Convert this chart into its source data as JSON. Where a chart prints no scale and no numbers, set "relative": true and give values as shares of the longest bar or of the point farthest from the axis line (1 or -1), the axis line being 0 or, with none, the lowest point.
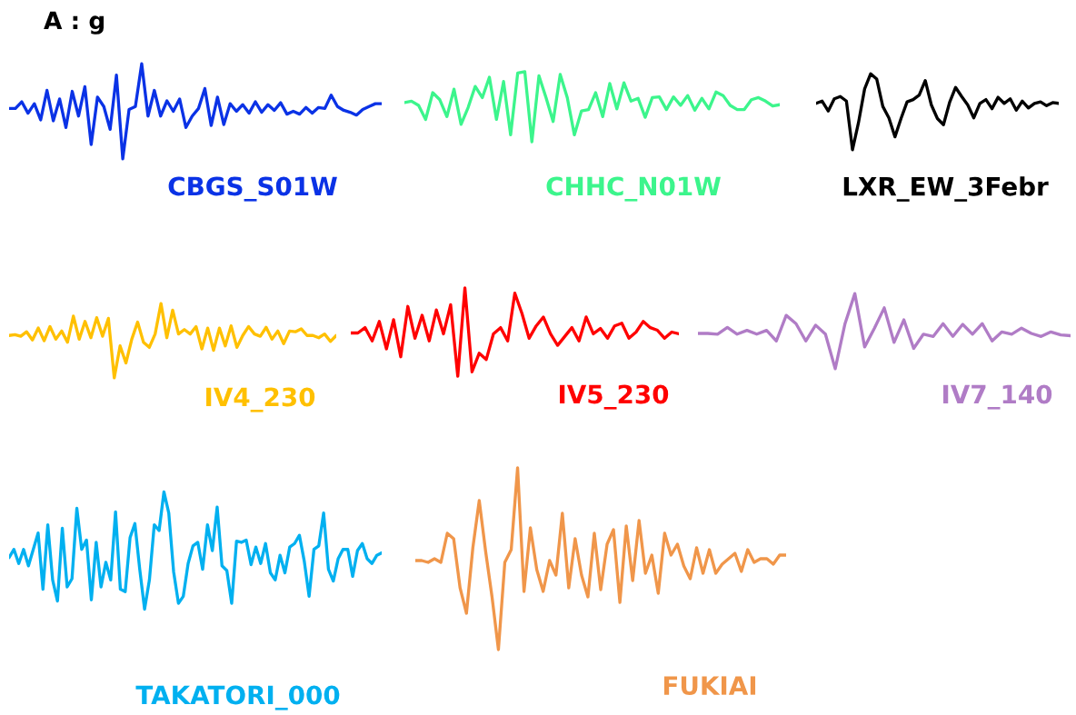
{
  "chart_data": [
    {
      "type": "line",
      "title": "A : g",
      "relative": true,
      "categories": [
        null,
        null,
        null,
        null,
        null,
        null,
        null,
        null,
        null,
        null,
        null,
        null,
        null,
        null,
        null,
        null,
        null,
        null,
        null,
        null,
        null,
        null,
        null,
        null,
        null,
        null,
        null,
        null,
        null,
        null,
        null,
        null,
        null,
        null,
        null,
        null,
        null,
        null,
        null,
        null,
        null,
        null,
        null,
        null,
        null,
        null,
        null,
        null,
        null,
        null,
        null,
        null,
        null,
        null,
        null,
        null,
        null,
        null,
        null,
        null
      ],
      "series": [
        {
          "name": "CBGS_S01W",
          "color": "#0a32e6",
          "values": [
            0.53,
            0.53,
            0.6,
            0.48,
            0.58,
            0.41,
            0.72,
            0.4,
            0.63,
            0.33,
            0.71,
            0.45,
            0.76,
            0.15,
            0.65,
            0.55,
            0.31,
            0.88,
            0.0,
            0.52,
            0.55,
            1.0,
            0.45,
            0.72,
            0.45,
            0.61,
            0.5,
            0.63,
            0.33,
            0.45,
            0.53,
            0.74,
            0.35,
            0.65,
            0.36,
            0.58,
            0.5,
            0.57,
            0.48,
            0.6,
            0.49,
            0.57,
            0.51,
            0.59,
            0.47,
            0.5,
            0.47,
            0.54,
            0.48,
            0.54,
            0.53,
            0.67,
            0.55,
            0.51,
            0.49,
            0.46,
            0.52,
            0.55,
            0.58,
            0.58
          ]
        }
      ]
    },
    {
      "type": "line",
      "relative": true,
      "categories": [
        null,
        null,
        null,
        null,
        null,
        null,
        null,
        null,
        null,
        null,
        null,
        null,
        null,
        null,
        null,
        null,
        null,
        null,
        null,
        null,
        null,
        null,
        null,
        null,
        null,
        null,
        null,
        null,
        null,
        null,
        null,
        null,
        null,
        null,
        null,
        null,
        null,
        null,
        null,
        null,
        null,
        null,
        null,
        null,
        null,
        null,
        null,
        null,
        null,
        null,
        null,
        null,
        null,
        null
      ],
      "series": [
        {
          "name": "CHHC_N01W",
          "color": "#3cf58c",
          "values": [
            0.56,
            0.58,
            0.52,
            0.32,
            0.7,
            0.6,
            0.36,
            0.75,
            0.25,
            0.49,
            0.79,
            0.63,
            0.92,
            0.32,
            0.86,
            0.1,
            0.98,
            1.0,
            0.0,
            0.94,
            0.63,
            0.29,
            0.96,
            0.63,
            0.1,
            0.44,
            0.46,
            0.7,
            0.36,
            0.83,
            0.47,
            0.84,
            0.58,
            0.62,
            0.35,
            0.63,
            0.64,
            0.46,
            0.64,
            0.52,
            0.66,
            0.45,
            0.62,
            0.47,
            0.71,
            0.66,
            0.52,
            0.46,
            0.46,
            0.6,
            0.63,
            0.58,
            0.51,
            0.53
          ]
        }
      ]
    },
    {
      "type": "line",
      "relative": true,
      "categories": [
        null,
        null,
        null,
        null,
        null,
        null,
        null,
        null,
        null,
        null,
        null,
        null,
        null,
        null,
        null,
        null,
        null,
        null,
        null,
        null,
        null,
        null,
        null,
        null,
        null,
        null,
        null,
        null,
        null,
        null,
        null,
        null,
        null,
        null,
        null,
        null,
        null,
        null,
        null,
        null,
        null
      ],
      "series": [
        {
          "name": "LXR_EW_3Febr",
          "color": "#000000",
          "values": [
            0.61,
            0.64,
            0.51,
            0.67,
            0.7,
            0.64,
            0.0,
            0.36,
            0.8,
            1.0,
            0.93,
            0.57,
            0.42,
            0.17,
            0.41,
            0.63,
            0.66,
            0.72,
            0.91,
            0.59,
            0.41,
            0.33,
            0.62,
            0.82,
            0.7,
            0.59,
            0.42,
            0.61,
            0.66,
            0.54,
            0.69,
            0.61,
            0.67,
            0.52,
            0.64,
            0.55,
            0.61,
            0.63,
            0.58,
            0.62,
            0.61
          ]
        }
      ]
    },
    {
      "type": "line",
      "relative": true,
      "categories": [
        null,
        null,
        null,
        null,
        null,
        null,
        null,
        null,
        null,
        null,
        null,
        null,
        null,
        null,
        null,
        null,
        null,
        null,
        null,
        null,
        null,
        null,
        null,
        null,
        null,
        null,
        null,
        null,
        null,
        null,
        null,
        null,
        null,
        null,
        null,
        null,
        null,
        null,
        null,
        null,
        null,
        null,
        null,
        null,
        null,
        null,
        null,
        null,
        null,
        null,
        null,
        null,
        null,
        null,
        null,
        null,
        null
      ],
      "series": [
        {
          "name": "IV4_230",
          "color": "#ffc000",
          "values": [
            0.57,
            0.58,
            0.56,
            0.62,
            0.51,
            0.67,
            0.5,
            0.69,
            0.52,
            0.63,
            0.48,
            0.83,
            0.52,
            0.76,
            0.54,
            0.81,
            0.56,
            0.8,
            0.0,
            0.43,
            0.2,
            0.52,
            0.75,
            0.48,
            0.41,
            0.59,
            1.0,
            0.54,
            0.91,
            0.59,
            0.65,
            0.59,
            0.69,
            0.39,
            0.67,
            0.37,
            0.67,
            0.43,
            0.7,
            0.41,
            0.57,
            0.69,
            0.59,
            0.56,
            0.68,
            0.52,
            0.63,
            0.46,
            0.63,
            0.62,
            0.66,
            0.57,
            0.57,
            0.54,
            0.59,
            0.49,
            0.57
          ]
        }
      ]
    },
    {
      "type": "line",
      "relative": true,
      "categories": [
        null,
        null,
        null,
        null,
        null,
        null,
        null,
        null,
        null,
        null,
        null,
        null,
        null,
        null,
        null,
        null,
        null,
        null,
        null,
        null,
        null,
        null,
        null,
        null,
        null,
        null,
        null,
        null,
        null,
        null,
        null,
        null,
        null,
        null,
        null,
        null,
        null,
        null,
        null,
        null,
        null,
        null,
        null,
        null,
        null,
        null,
        null
      ],
      "series": [
        {
          "name": "IV5_230",
          "color": "#ff0000",
          "values": [
            0.49,
            0.49,
            0.55,
            0.4,
            0.62,
            0.31,
            0.64,
            0.22,
            0.79,
            0.43,
            0.69,
            0.4,
            0.75,
            0.48,
            0.81,
            0.0,
            1.0,
            0.05,
            0.26,
            0.19,
            0.48,
            0.55,
            0.4,
            0.94,
            0.71,
            0.43,
            0.57,
            0.67,
            0.48,
            0.35,
            0.45,
            0.55,
            0.4,
            0.67,
            0.48,
            0.54,
            0.43,
            0.57,
            0.6,
            0.43,
            0.5,
            0.62,
            0.55,
            0.52,
            0.43,
            0.5,
            0.48
          ]
        }
      ]
    },
    {
      "type": "line",
      "relative": true,
      "categories": [
        null,
        null,
        null,
        null,
        null,
        null,
        null,
        null,
        null,
        null,
        null,
        null,
        null,
        null,
        null,
        null,
        null,
        null,
        null,
        null,
        null,
        null,
        null,
        null,
        null,
        null,
        null,
        null,
        null,
        null,
        null,
        null,
        null,
        null,
        null,
        null,
        null,
        null,
        null
      ],
      "series": [
        {
          "name": "IV7_140",
          "color": "#b07cc6",
          "values": [
            0.47,
            0.47,
            0.46,
            0.55,
            0.46,
            0.51,
            0.46,
            0.51,
            0.37,
            0.71,
            0.6,
            0.37,
            0.58,
            0.46,
            0.0,
            0.6,
            1.0,
            0.29,
            0.54,
            0.81,
            0.35,
            0.65,
            0.27,
            0.46,
            0.43,
            0.6,
            0.43,
            0.59,
            0.46,
            0.6,
            0.37,
            0.49,
            0.46,
            0.54,
            0.47,
            0.43,
            0.49,
            0.45,
            0.44
          ]
        }
      ]
    },
    {
      "type": "line",
      "relative": true,
      "categories": [
        null,
        null,
        null,
        null,
        null,
        null,
        null,
        null,
        null,
        null,
        null,
        null,
        null,
        null,
        null,
        null,
        null,
        null,
        null,
        null,
        null,
        null,
        null,
        null,
        null,
        null,
        null,
        null,
        null,
        null,
        null,
        null,
        null,
        null,
        null,
        null,
        null,
        null,
        null,
        null,
        null,
        null,
        null,
        null,
        null,
        null,
        null,
        null,
        null,
        null,
        null,
        null,
        null,
        null,
        null,
        null,
        null,
        null,
        null,
        null,
        null,
        null,
        null,
        null,
        null,
        null,
        null,
        null,
        null,
        null,
        null,
        null,
        null,
        null,
        null,
        null,
        null,
        null
      ],
      "series": [
        {
          "name": "TAKATORI_000",
          "color": "#00b0f0",
          "values": [
            0.44,
            0.51,
            0.39,
            0.51,
            0.37,
            0.51,
            0.65,
            0.17,
            0.72,
            0.25,
            0.07,
            0.69,
            0.19,
            0.26,
            0.86,
            0.51,
            0.59,
            0.08,
            0.57,
            0.19,
            0.4,
            0.25,
            0.83,
            0.17,
            0.15,
            0.61,
            0.73,
            0.34,
            0.0,
            0.25,
            0.72,
            0.67,
            1.0,
            0.82,
            0.32,
            0.05,
            0.11,
            0.39,
            0.54,
            0.57,
            0.34,
            0.72,
            0.5,
            0.87,
            0.37,
            0.33,
            0.05,
            0.58,
            0.57,
            0.59,
            0.38,
            0.53,
            0.39,
            0.56,
            0.31,
            0.25,
            0.46,
            0.31,
            0.53,
            0.56,
            0.63,
            0.41,
            0.11,
            0.51,
            0.54,
            0.82,
            0.34,
            0.24,
            0.43,
            0.51,
            0.51,
            0.28,
            0.5,
            0.56,
            0.43,
            0.39,
            0.46,
            0.48
          ]
        }
      ]
    },
    {
      "type": "line",
      "relative": true,
      "categories": [
        null,
        null,
        null,
        null,
        null,
        null,
        null,
        null,
        null,
        null,
        null,
        null,
        null,
        null,
        null,
        null,
        null,
        null,
        null,
        null,
        null,
        null,
        null,
        null,
        null,
        null,
        null,
        null,
        null,
        null,
        null,
        null,
        null,
        null,
        null,
        null,
        null,
        null,
        null,
        null,
        null,
        null,
        null,
        null,
        null,
        null,
        null,
        null,
        null,
        null,
        null,
        null,
        null,
        null,
        null,
        null,
        null,
        null,
        null
      ],
      "series": [
        {
          "name": "FUKIAI",
          "color": "#f0964a",
          "values": [
            0.49,
            0.49,
            0.48,
            0.5,
            0.48,
            0.64,
            0.61,
            0.34,
            0.2,
            0.56,
            0.82,
            0.54,
            0.29,
            0.0,
            0.48,
            0.55,
            1.0,
            0.32,
            0.67,
            0.44,
            0.32,
            0.49,
            0.41,
            0.75,
            0.34,
            0.61,
            0.41,
            0.29,
            0.64,
            0.33,
            0.58,
            0.66,
            0.26,
            0.68,
            0.38,
            0.71,
            0.42,
            0.52,
            0.31,
            0.64,
            0.52,
            0.58,
            0.46,
            0.39,
            0.56,
            0.42,
            0.55,
            0.42,
            0.47,
            0.5,
            0.53,
            0.43,
            0.55,
            0.48,
            0.5,
            0.5,
            0.47,
            0.52,
            0.52
          ]
        }
      ]
    }
  ]
}
